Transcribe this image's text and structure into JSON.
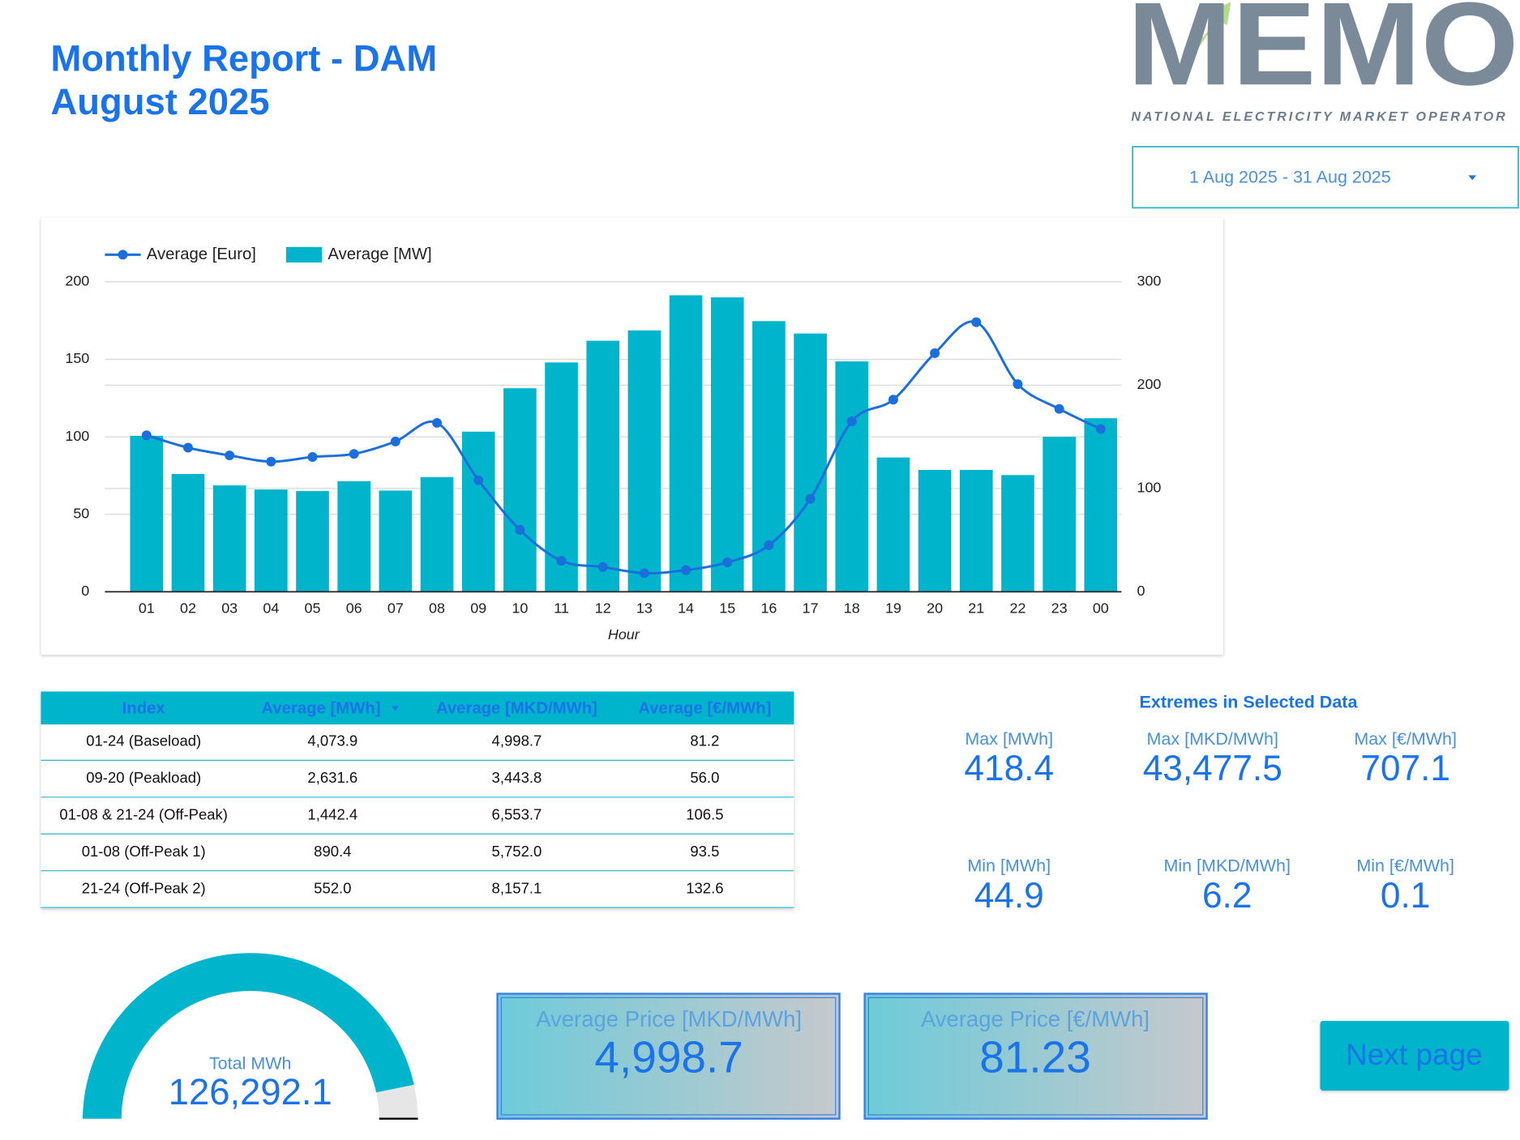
{
  "header": {
    "title_line1": "Monthly Report - DAM",
    "title_line2": "August 2025"
  },
  "logo": {
    "name": "MEMO",
    "tagline": "NATIONAL ELECTRICITY MARKET OPERATOR"
  },
  "date_range": "1 Aug 2025 - 31 Aug 2025",
  "chart_data": {
    "type": "combo",
    "x_label": "Hour",
    "categories": [
      "01",
      "02",
      "03",
      "04",
      "05",
      "06",
      "07",
      "08",
      "09",
      "10",
      "11",
      "12",
      "13",
      "14",
      "15",
      "16",
      "17",
      "18",
      "19",
      "20",
      "21",
      "22",
      "23",
      "00"
    ],
    "series": [
      {
        "name": "Average [Euro]",
        "kind": "line",
        "color": "#1a6fdc",
        "values": [
          101,
          93,
          88,
          84,
          87,
          89,
          97,
          109,
          72,
          40,
          20,
          16,
          12,
          14,
          19,
          30,
          60,
          110,
          124,
          154,
          174,
          134,
          118,
          105
        ]
      },
      {
        "name": "Average [MW]",
        "kind": "bar",
        "axis": "y2",
        "color": "#00b4cc",
        "values": [
          151,
          114,
          103,
          99,
          97.5,
          107,
          98,
          111,
          155,
          197,
          222,
          243,
          253,
          287,
          285,
          262,
          250,
          223,
          130,
          118,
          118,
          113,
          150,
          168
        ]
      }
    ],
    "ylim": [
      0,
      200
    ],
    "yticks": [
      0,
      50,
      100,
      150,
      200
    ],
    "y2lim": [
      0,
      300
    ],
    "y2ticks": [
      0,
      100,
      200,
      300
    ],
    "grid": true,
    "legend": "top-left"
  },
  "table": {
    "columns": [
      "Index",
      "Average [MWh]",
      "Average [MKD/MWh]",
      "Average [€/MWh]"
    ],
    "rows": [
      [
        "01-24 (Baseload)",
        "4,073.9",
        "4,998.7",
        "81.2"
      ],
      [
        "09-20 (Peakload)",
        "2,631.6",
        "3,443.8",
        "56.0"
      ],
      [
        "01-08 & 21-24 (Off-Peak)",
        "1,442.4",
        "6,553.7",
        "106.5"
      ],
      [
        "01-08 (Off-Peak 1)",
        "890.4",
        "5,752.0",
        "93.5"
      ],
      [
        "21-24 (Off-Peak 2)",
        "552.0",
        "8,157.1",
        "132.6"
      ]
    ]
  },
  "extremes": {
    "title": "Extremes in Selected Data",
    "items": [
      {
        "label": "Max [MWh]",
        "value": "418.4"
      },
      {
        "label": "Max [MKD/MWh]",
        "value": "43,477.5"
      },
      {
        "label": "Max [€/MWh]",
        "value": "707.1"
      },
      {
        "label": "Min [MWh]",
        "value": "44.9"
      },
      {
        "label": "Min [MKD/MWh]",
        "value": "6.2"
      },
      {
        "label": "Min [€/MWh]",
        "value": "0.1"
      }
    ]
  },
  "gauge": {
    "label": "Total MWh",
    "value": "126,292.1"
  },
  "kpis": [
    {
      "label": "Average Price [MKD/MWh]",
      "value": "4,998.7"
    },
    {
      "label": "Average Price [€/MWh]",
      "value": "81.23"
    }
  ],
  "button": "Next page"
}
